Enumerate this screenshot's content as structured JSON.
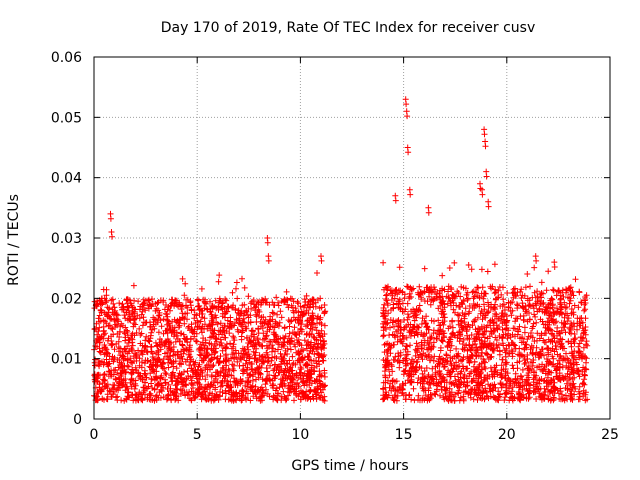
{
  "chart_data": {
    "type": "scatter",
    "title": "Day 170 of 2019, Rate Of TEC Index for receiver cusv",
    "xlabel": "GPS time / hours",
    "ylabel": "ROTI / TECUs",
    "xlim": [
      0,
      25
    ],
    "ylim": [
      0,
      0.06
    ],
    "x_ticks": [
      0,
      5,
      10,
      15,
      20,
      25
    ],
    "x_tick_labels": [
      "0",
      "5",
      "10",
      "15",
      "20",
      "25"
    ],
    "y_ticks": [
      0,
      0.01,
      0.02,
      0.03,
      0.04,
      0.05,
      0.06
    ],
    "y_tick_labels": [
      "0",
      "0.01",
      "0.02",
      "0.03",
      "0.04",
      "0.05",
      "0.06"
    ],
    "grid": true,
    "marker": "+",
    "color": "#ff0000",
    "series": [
      {
        "name": "ROTI",
        "description": "dense cloud of points",
        "segments": [
          {
            "x_range": [
              0.0,
              11.2
            ],
            "typical_y_range": [
              0.003,
              0.02
            ]
          },
          {
            "x_range": [
              14.0,
              23.9
            ],
            "typical_y_range": [
              0.003,
              0.022
            ]
          }
        ],
        "peaks": [
          {
            "x": 0.8,
            "y": 0.034
          },
          {
            "x": 0.85,
            "y": 0.031
          },
          {
            "x": 8.4,
            "y": 0.03
          },
          {
            "x": 8.45,
            "y": 0.027
          },
          {
            "x": 11.0,
            "y": 0.027
          },
          {
            "x": 14.6,
            "y": 0.037
          },
          {
            "x": 15.1,
            "y": 0.053
          },
          {
            "x": 15.15,
            "y": 0.051
          },
          {
            "x": 15.2,
            "y": 0.045
          },
          {
            "x": 15.3,
            "y": 0.038
          },
          {
            "x": 16.2,
            "y": 0.035
          },
          {
            "x": 18.7,
            "y": 0.039
          },
          {
            "x": 18.8,
            "y": 0.038
          },
          {
            "x": 18.9,
            "y": 0.048
          },
          {
            "x": 18.95,
            "y": 0.046
          },
          {
            "x": 19.0,
            "y": 0.041
          },
          {
            "x": 19.1,
            "y": 0.036
          },
          {
            "x": 21.4,
            "y": 0.027
          },
          {
            "x": 22.3,
            "y": 0.026
          }
        ],
        "gap": [
          11.2,
          14.0
        ]
      }
    ]
  }
}
